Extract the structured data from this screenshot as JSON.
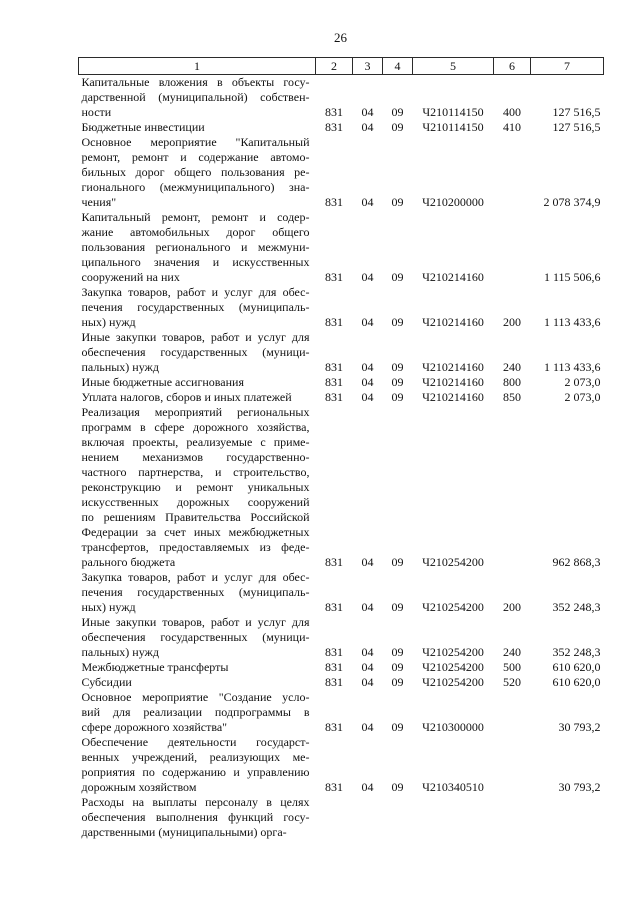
{
  "page": {
    "number": "26"
  },
  "table": {
    "headers": [
      "1",
      "2",
      "3",
      "4",
      "5",
      "6",
      "7"
    ],
    "rows": [
      {
        "lines": [
          "Капитальные вложения в объекты госу-",
          "дарственной (муниципальной) собствен-",
          "ности"
        ],
        "values": [
          "831",
          "04",
          "09",
          "Ч210114150",
          "400",
          "127 516,5"
        ]
      },
      {
        "lines": [
          "Бюджетные инвестиции"
        ],
        "values": [
          "831",
          "04",
          "09",
          "Ч210114150",
          "410",
          "127 516,5"
        ]
      },
      {
        "lines": [
          "Основное мероприятие \"Капитальный",
          "ремонт, ремонт и содержание автомо-",
          "бильных дорог общего пользования ре-",
          "гионального (межмуниципального) зна-",
          "чения\""
        ],
        "values": [
          "831",
          "04",
          "09",
          "Ч210200000",
          "",
          "2 078 374,9"
        ]
      },
      {
        "lines": [
          "Капитальный ремонт, ремонт и содер-",
          "жание автомобильных дорог общего",
          "пользования регионального и межмуни-",
          "ципального значения и искусственных",
          "сооружений на них"
        ],
        "values": [
          "831",
          "04",
          "09",
          "Ч210214160",
          "",
          "1 115 506,6"
        ]
      },
      {
        "lines": [
          "Закупка товаров, работ и услуг для обес-",
          "печения государственных (муниципаль-",
          "ных) нужд"
        ],
        "values": [
          "831",
          "04",
          "09",
          "Ч210214160",
          "200",
          "1 113 433,6"
        ]
      },
      {
        "lines": [
          "Иные закупки товаров, работ и услуг для",
          "обеспечения государственных (муници-",
          "пальных) нужд"
        ],
        "values": [
          "831",
          "04",
          "09",
          "Ч210214160",
          "240",
          "1 113 433,6"
        ]
      },
      {
        "lines": [
          "Иные бюджетные ассигнования"
        ],
        "values": [
          "831",
          "04",
          "09",
          "Ч210214160",
          "800",
          "2 073,0"
        ]
      },
      {
        "lines": [
          "Уплата налогов, сборов и иных платежей"
        ],
        "values": [
          "831",
          "04",
          "09",
          "Ч210214160",
          "850",
          "2 073,0"
        ]
      },
      {
        "lines": [
          "Реализация мероприятий региональных",
          "программ в сфере дорожного хозяйства,",
          "включая проекты, реализуемые с приме-",
          "нением механизмов государственно-",
          "частного партнерства, и строительство,",
          "реконструкцию и ремонт уникальных",
          "искусственных дорожных сооружений",
          "по решениям Правительства Российской",
          "Федерации за счет иных межбюджетных",
          "трансфертов, предоставляемых из феде-",
          "рального бюджета"
        ],
        "values": [
          "831",
          "04",
          "09",
          "Ч210254200",
          "",
          "962 868,3"
        ]
      },
      {
        "lines": [
          "Закупка товаров, работ и услуг для обес-",
          "печения государственных (муниципаль-",
          "ных) нужд"
        ],
        "values": [
          "831",
          "04",
          "09",
          "Ч210254200",
          "200",
          "352 248,3"
        ]
      },
      {
        "lines": [
          "Иные закупки товаров, работ и услуг для",
          "обеспечения государственных (муници-",
          "пальных) нужд"
        ],
        "values": [
          "831",
          "04",
          "09",
          "Ч210254200",
          "240",
          "352 248,3"
        ]
      },
      {
        "lines": [
          "Межбюджетные трансферты"
        ],
        "values": [
          "831",
          "04",
          "09",
          "Ч210254200",
          "500",
          "610 620,0"
        ]
      },
      {
        "lines": [
          "Субсидии"
        ],
        "values": [
          "831",
          "04",
          "09",
          "Ч210254200",
          "520",
          "610 620,0"
        ]
      },
      {
        "lines": [
          "Основное мероприятие \"Создание усло-",
          "вий для реализации подпрограммы в",
          "сфере дорожного хозяйства\""
        ],
        "values": [
          "831",
          "04",
          "09",
          "Ч210300000",
          "",
          "30 793,2"
        ]
      },
      {
        "lines": [
          "Обеспечение деятельности государст-",
          "венных учреждений, реализующих ме-",
          "роприятия по содержанию и управлению",
          "дорожным хозяйством"
        ],
        "values": [
          "831",
          "04",
          "09",
          "Ч210340510",
          "",
          "30 793,2"
        ]
      },
      {
        "lines": [
          "Расходы на выплаты персоналу в целях",
          "обеспечения выполнения функций госу-",
          "дарственными (муниципальными) орга-"
        ],
        "values": [
          "",
          "",
          "",
          "",
          "",
          ""
        ]
      }
    ]
  }
}
